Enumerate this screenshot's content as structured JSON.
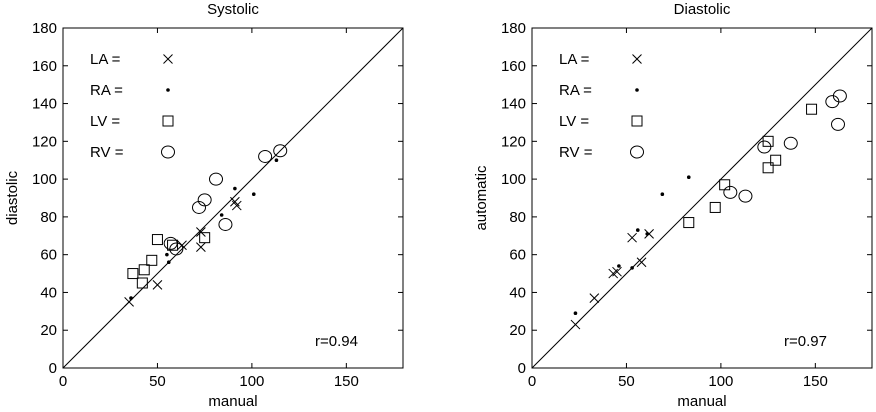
{
  "chart_data": [
    {
      "type": "scatter",
      "title": "Systolic",
      "xlabel": "manual",
      "ylabel": "diastolic",
      "xlim": [
        0,
        180
      ],
      "ylim": [
        0,
        180
      ],
      "xticks": [
        0,
        50,
        100,
        150
      ],
      "yticks": [
        0,
        20,
        40,
        60,
        80,
        100,
        120,
        140,
        160,
        180
      ],
      "identity_line": true,
      "legend_position": "top-left",
      "annotation": "r=0.94",
      "series": [
        {
          "name": "LA =",
          "marker": "x",
          "points": [
            [
              35,
              35
            ],
            [
              50,
              44
            ],
            [
              63,
              65
            ],
            [
              73,
              64
            ],
            [
              73,
              72
            ],
            [
              91,
              88
            ],
            [
              92,
              86
            ]
          ]
        },
        {
          "name": "RA =",
          "marker": "dot",
          "points": [
            [
              36,
              37
            ],
            [
              55,
              60
            ],
            [
              56,
              56
            ],
            [
              84,
              81
            ],
            [
              91,
              95
            ],
            [
              101,
              92
            ],
            [
              113,
              110
            ]
          ]
        },
        {
          "name": "LV =",
          "marker": "square",
          "points": [
            [
              37,
              50
            ],
            [
              42,
              45
            ],
            [
              43,
              52
            ],
            [
              47,
              57
            ],
            [
              50,
              68
            ],
            [
              58,
              65
            ],
            [
              75,
              69
            ]
          ]
        },
        {
          "name": "RV =",
          "marker": "circle",
          "points": [
            [
              57,
              66
            ],
            [
              60,
              63
            ],
            [
              72,
              85
            ],
            [
              75,
              89
            ],
            [
              81,
              100
            ],
            [
              86,
              76
            ],
            [
              107,
              112
            ],
            [
              115,
              115
            ]
          ]
        }
      ]
    },
    {
      "type": "scatter",
      "title": "Diastolic",
      "xlabel": "manual",
      "ylabel": "automatic",
      "xlim": [
        0,
        180
      ],
      "ylim": [
        0,
        180
      ],
      "xticks": [
        0,
        50,
        100,
        150
      ],
      "yticks": [
        0,
        20,
        40,
        60,
        80,
        100,
        120,
        140,
        160,
        180
      ],
      "identity_line": true,
      "legend_position": "top-left",
      "annotation": "r=0.97",
      "series": [
        {
          "name": "LA =",
          "marker": "x",
          "points": [
            [
              23,
              23
            ],
            [
              33,
              37
            ],
            [
              43,
              50
            ],
            [
              45,
              51
            ],
            [
              53,
              69
            ],
            [
              58,
              56
            ],
            [
              62,
              71
            ]
          ]
        },
        {
          "name": "RA =",
          "marker": "dot",
          "points": [
            [
              23,
              29
            ],
            [
              46,
              54
            ],
            [
              53,
              53
            ],
            [
              56,
              73
            ],
            [
              61,
              71
            ],
            [
              69,
              92
            ],
            [
              83,
              101
            ]
          ]
        },
        {
          "name": "LV =",
          "marker": "square",
          "points": [
            [
              83,
              77
            ],
            [
              97,
              85
            ],
            [
              102,
              97
            ],
            [
              125,
              106
            ],
            [
              125,
              120
            ],
            [
              129,
              110
            ],
            [
              148,
              137
            ]
          ]
        },
        {
          "name": "RV =",
          "marker": "circle",
          "points": [
            [
              105,
              93
            ],
            [
              113,
              91
            ],
            [
              123,
              117
            ],
            [
              137,
              119
            ],
            [
              159,
              141
            ],
            [
              162,
              129
            ],
            [
              163,
              144
            ]
          ]
        }
      ]
    }
  ]
}
